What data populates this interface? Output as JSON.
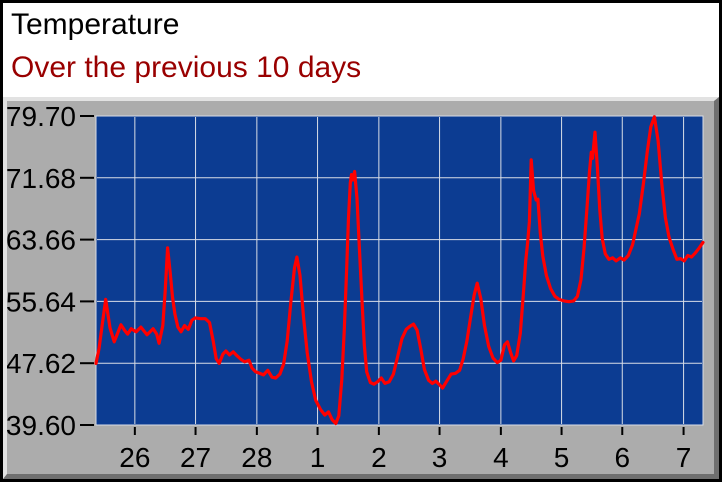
{
  "header": {
    "title": "Temperature",
    "subtitle": "Over the previous 10 days"
  },
  "chart_data": {
    "type": "line",
    "title": "Temperature",
    "subtitle": "Over the previous 10 days",
    "grid": true,
    "legend": "none",
    "colors": {
      "plot_background": "#0c3c92",
      "grid": "#d9dde6",
      "panel_background": "#acacac",
      "line": "#ff0000",
      "subtitle_text": "#990000",
      "axis_text": "#000000"
    },
    "x_axis": {
      "range": [
        0,
        10
      ],
      "ticks": [
        {
          "label": "26",
          "pos": 0.64
        },
        {
          "label": "27",
          "pos": 1.64
        },
        {
          "label": "28",
          "pos": 2.65
        },
        {
          "label": "1",
          "pos": 3.65
        },
        {
          "label": "2",
          "pos": 4.66
        },
        {
          "label": "3",
          "pos": 5.66
        },
        {
          "label": "4",
          "pos": 6.67
        },
        {
          "label": "5",
          "pos": 7.67
        },
        {
          "label": "6",
          "pos": 8.67
        },
        {
          "label": "7",
          "pos": 9.68
        }
      ]
    },
    "y_axis": {
      "range": [
        39.6,
        79.7
      ],
      "ticks": [
        {
          "label": "79.70",
          "value": 79.7
        },
        {
          "label": "71.68",
          "value": 71.68
        },
        {
          "label": "63.66",
          "value": 63.66
        },
        {
          "label": "55.64",
          "value": 55.64
        },
        {
          "label": "47.62",
          "value": 47.62
        },
        {
          "label": "39.60",
          "value": 39.6
        }
      ]
    },
    "series": [
      {
        "name": "temperature",
        "color": "#ff0000",
        "points": [
          [
            0.0,
            47.6
          ],
          [
            0.05,
            49.5
          ],
          [
            0.1,
            52.5
          ],
          [
            0.16,
            55.9
          ],
          [
            0.23,
            52.2
          ],
          [
            0.3,
            50.4
          ],
          [
            0.36,
            51.6
          ],
          [
            0.41,
            52.6
          ],
          [
            0.47,
            51.9
          ],
          [
            0.52,
            51.4
          ],
          [
            0.58,
            52.1
          ],
          [
            0.66,
            51.7
          ],
          [
            0.74,
            52.3
          ],
          [
            0.84,
            51.3
          ],
          [
            0.94,
            52.1
          ],
          [
            1.0,
            51.4
          ],
          [
            1.04,
            50.2
          ],
          [
            1.1,
            52.5
          ],
          [
            1.14,
            57.0
          ],
          [
            1.18,
            62.6
          ],
          [
            1.22,
            59.5
          ],
          [
            1.26,
            56.2
          ],
          [
            1.3,
            54.0
          ],
          [
            1.35,
            52.3
          ],
          [
            1.4,
            51.7
          ],
          [
            1.46,
            52.5
          ],
          [
            1.52,
            52.0
          ],
          [
            1.58,
            53.2
          ],
          [
            1.64,
            53.5
          ],
          [
            1.72,
            53.4
          ],
          [
            1.8,
            53.4
          ],
          [
            1.87,
            52.9
          ],
          [
            1.93,
            50.5
          ],
          [
            1.98,
            48.2
          ],
          [
            2.03,
            47.6
          ],
          [
            2.09,
            48.8
          ],
          [
            2.14,
            49.2
          ],
          [
            2.2,
            48.7
          ],
          [
            2.26,
            49.1
          ],
          [
            2.32,
            48.6
          ],
          [
            2.39,
            48.1
          ],
          [
            2.45,
            47.8
          ],
          [
            2.52,
            48.0
          ],
          [
            2.57,
            47.0
          ],
          [
            2.63,
            46.5
          ],
          [
            2.7,
            46.3
          ],
          [
            2.76,
            46.1
          ],
          [
            2.83,
            46.7
          ],
          [
            2.9,
            45.8
          ],
          [
            2.96,
            45.7
          ],
          [
            3.03,
            46.2
          ],
          [
            3.09,
            47.5
          ],
          [
            3.15,
            50.5
          ],
          [
            3.21,
            55.5
          ],
          [
            3.27,
            60.0
          ],
          [
            3.31,
            61.4
          ],
          [
            3.36,
            59.0
          ],
          [
            3.42,
            53.5
          ],
          [
            3.48,
            49.0
          ],
          [
            3.55,
            45.2
          ],
          [
            3.62,
            42.8
          ],
          [
            3.7,
            41.6
          ],
          [
            3.77,
            40.9
          ],
          [
            3.83,
            41.3
          ],
          [
            3.89,
            40.3
          ],
          [
            3.95,
            39.8
          ],
          [
            4.0,
            40.8
          ],
          [
            4.05,
            45.5
          ],
          [
            4.09,
            52.0
          ],
          [
            4.13,
            60.0
          ],
          [
            4.16,
            66.5
          ],
          [
            4.19,
            71.0
          ],
          [
            4.21,
            72.1
          ],
          [
            4.23,
            71.4
          ],
          [
            4.26,
            72.5
          ],
          [
            4.3,
            69.0
          ],
          [
            4.34,
            62.5
          ],
          [
            4.38,
            56.0
          ],
          [
            4.42,
            50.0
          ],
          [
            4.46,
            46.5
          ],
          [
            4.52,
            45.1
          ],
          [
            4.58,
            44.9
          ],
          [
            4.64,
            45.2
          ],
          [
            4.7,
            45.7
          ],
          [
            4.76,
            45.0
          ],
          [
            4.83,
            45.2
          ],
          [
            4.9,
            46.2
          ],
          [
            4.97,
            48.5
          ],
          [
            5.04,
            50.8
          ],
          [
            5.11,
            52.0
          ],
          [
            5.17,
            52.4
          ],
          [
            5.23,
            52.7
          ],
          [
            5.29,
            51.9
          ],
          [
            5.35,
            49.5
          ],
          [
            5.41,
            46.8
          ],
          [
            5.48,
            45.4
          ],
          [
            5.54,
            45.0
          ],
          [
            5.6,
            45.3
          ],
          [
            5.65,
            44.9
          ],
          [
            5.71,
            44.4
          ],
          [
            5.78,
            45.3
          ],
          [
            5.85,
            46.2
          ],
          [
            5.92,
            46.3
          ],
          [
            5.99,
            46.7
          ],
          [
            6.05,
            48.2
          ],
          [
            6.11,
            50.5
          ],
          [
            6.17,
            53.5
          ],
          [
            6.23,
            56.5
          ],
          [
            6.28,
            58.0
          ],
          [
            6.34,
            56.0
          ],
          [
            6.4,
            52.5
          ],
          [
            6.47,
            49.8
          ],
          [
            6.54,
            48.3
          ],
          [
            6.61,
            47.7
          ],
          [
            6.67,
            48.0
          ],
          [
            6.73,
            50.0
          ],
          [
            6.78,
            50.4
          ],
          [
            6.83,
            49.0
          ],
          [
            6.88,
            47.9
          ],
          [
            6.93,
            48.6
          ],
          [
            6.99,
            51.5
          ],
          [
            7.04,
            56.5
          ],
          [
            7.08,
            61.0
          ],
          [
            7.11,
            63.2
          ],
          [
            7.14,
            66.0
          ],
          [
            7.17,
            74.0
          ],
          [
            7.21,
            70.0
          ],
          [
            7.25,
            68.8
          ],
          [
            7.28,
            68.9
          ],
          [
            7.32,
            64.5
          ],
          [
            7.36,
            61.5
          ],
          [
            7.42,
            59.0
          ],
          [
            7.49,
            57.3
          ],
          [
            7.56,
            56.3
          ],
          [
            7.63,
            55.9
          ],
          [
            7.71,
            55.7
          ],
          [
            7.79,
            55.6
          ],
          [
            7.87,
            55.7
          ],
          [
            7.93,
            56.3
          ],
          [
            7.99,
            58.5
          ],
          [
            8.04,
            62.5
          ],
          [
            8.09,
            68.0
          ],
          [
            8.13,
            72.5
          ],
          [
            8.16,
            75.0
          ],
          [
            8.18,
            74.2
          ],
          [
            8.22,
            77.6
          ],
          [
            8.26,
            73.0
          ],
          [
            8.3,
            67.5
          ],
          [
            8.34,
            63.8
          ],
          [
            8.39,
            61.8
          ],
          [
            8.45,
            61.1
          ],
          [
            8.51,
            61.3
          ],
          [
            8.57,
            60.9
          ],
          [
            8.64,
            61.3
          ],
          [
            8.7,
            61.0
          ],
          [
            8.77,
            61.6
          ],
          [
            8.84,
            63.0
          ],
          [
            8.89,
            64.8
          ],
          [
            8.95,
            67.0
          ],
          [
            9.02,
            71.0
          ],
          [
            9.08,
            75.0
          ],
          [
            9.14,
            78.3
          ],
          [
            9.2,
            79.6
          ],
          [
            9.26,
            76.5
          ],
          [
            9.32,
            71.0
          ],
          [
            9.38,
            66.5
          ],
          [
            9.44,
            64.0
          ],
          [
            9.51,
            62.3
          ],
          [
            9.57,
            61.1
          ],
          [
            9.63,
            61.2
          ],
          [
            9.69,
            60.9
          ],
          [
            9.75,
            61.6
          ],
          [
            9.81,
            61.4
          ],
          [
            9.87,
            61.9
          ],
          [
            9.93,
            62.5
          ],
          [
            10.0,
            63.3
          ]
        ]
      }
    ]
  }
}
